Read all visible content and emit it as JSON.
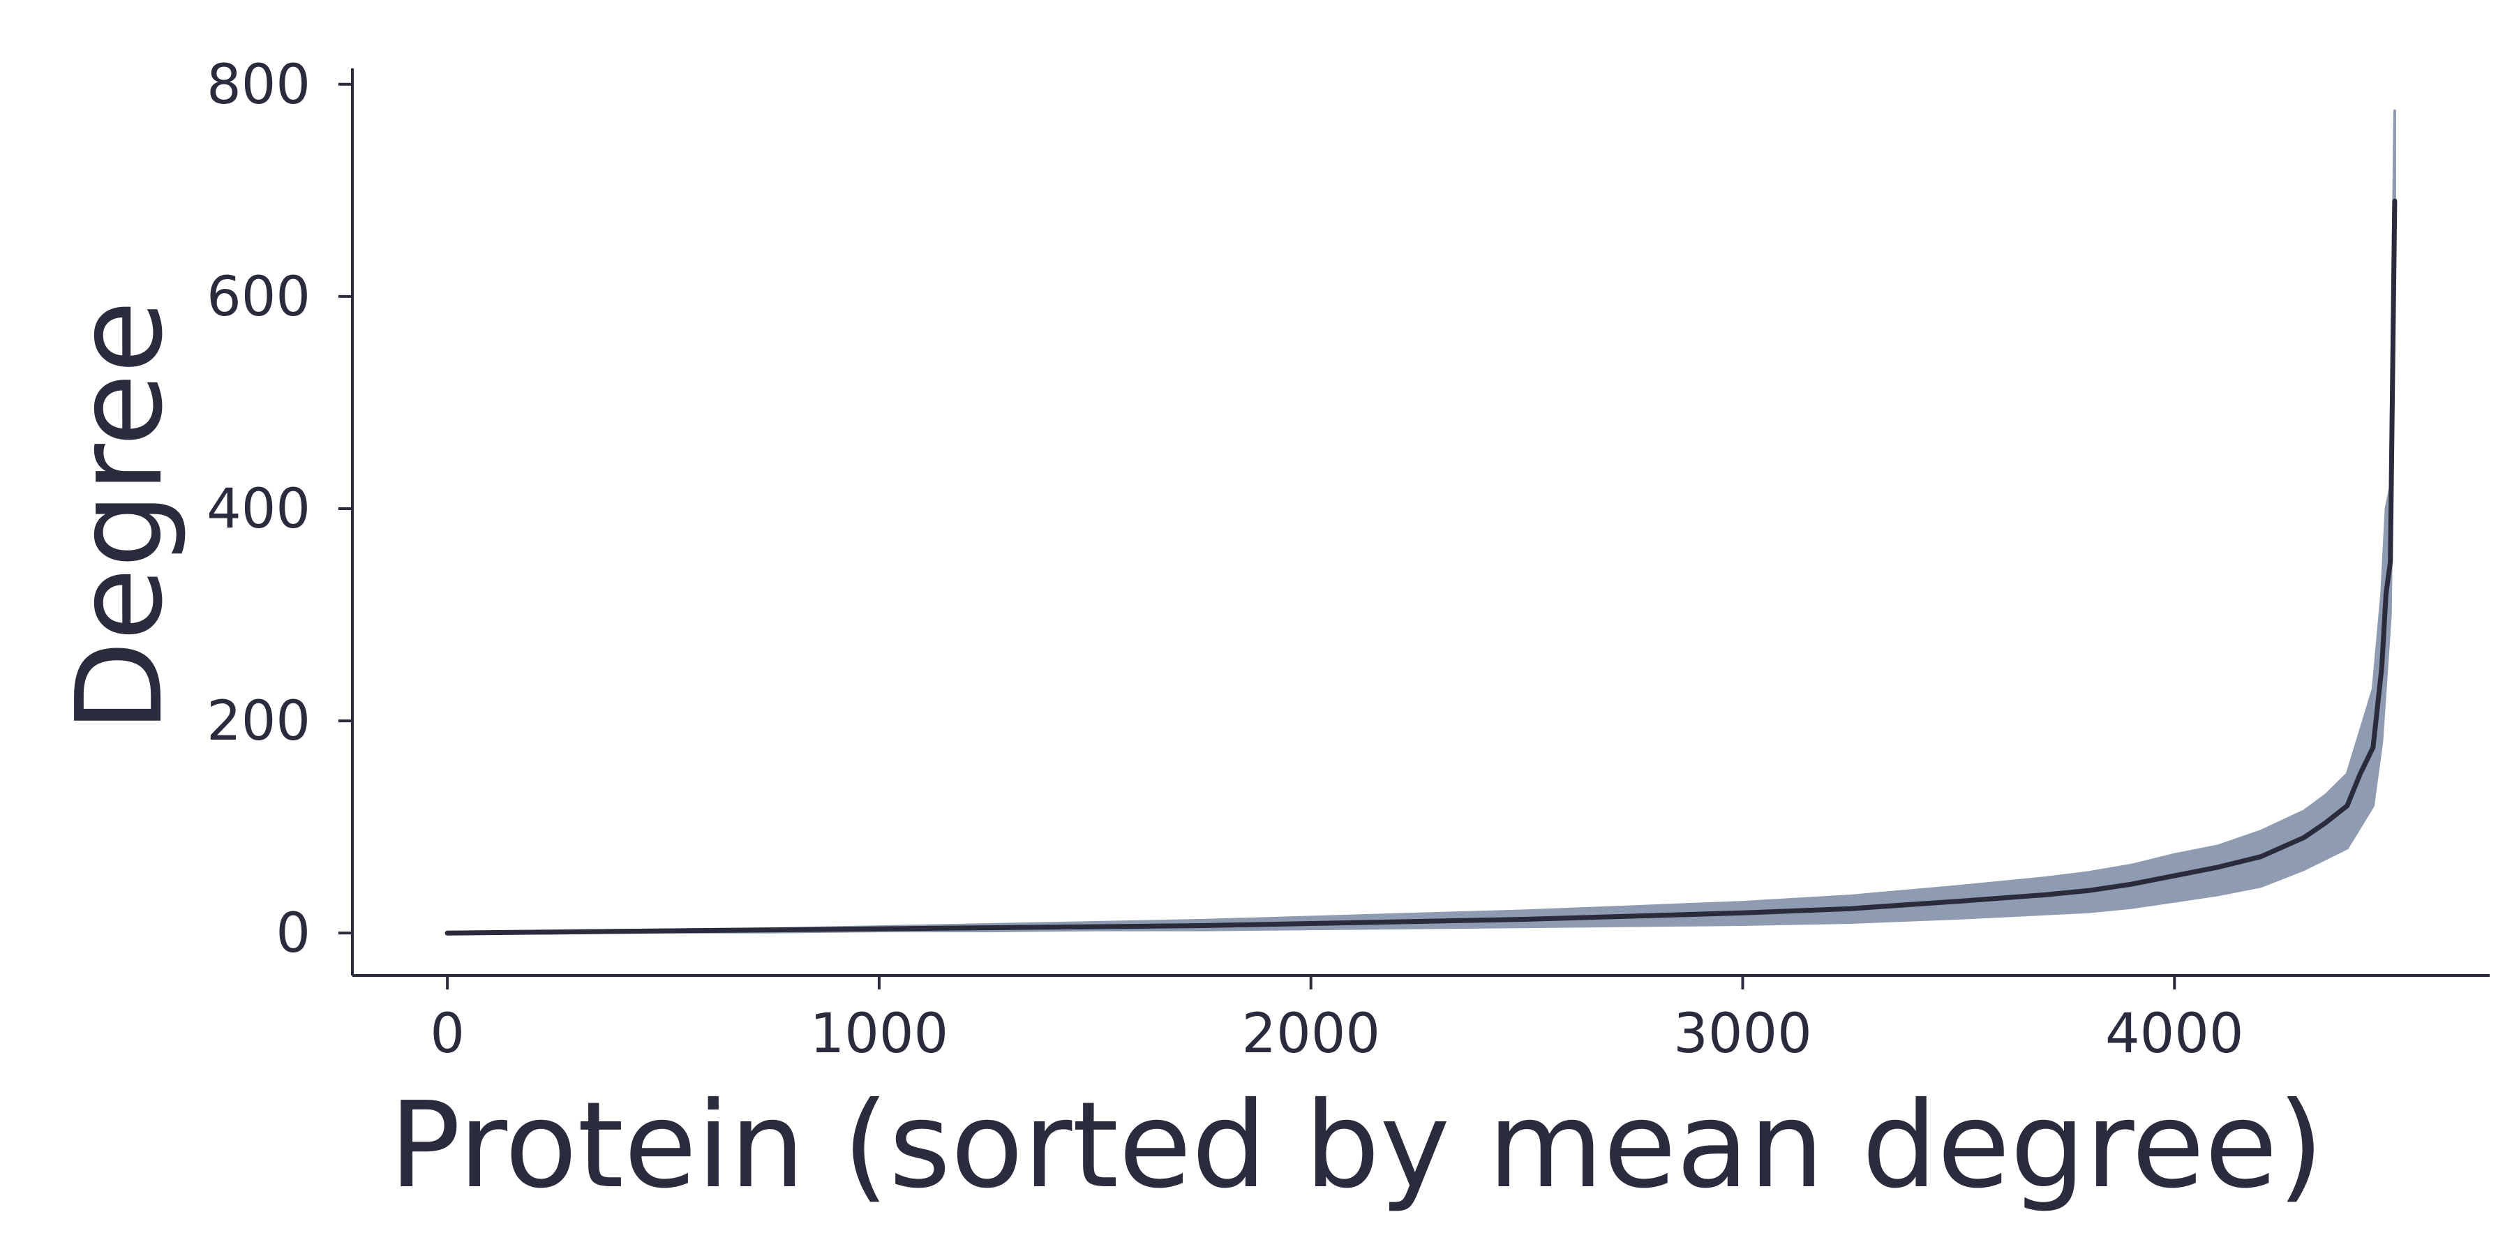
{
  "chart_data": {
    "type": "line",
    "title": "",
    "xlabel": "Protein (sorted by mean degree)",
    "ylabel": "Degree",
    "xlim": [
      -220,
      4730
    ],
    "ylim": [
      -40,
      815
    ],
    "xticks": [
      0,
      1000,
      2000,
      3000,
      4000
    ],
    "yticks": [
      0,
      200,
      400,
      600,
      800
    ],
    "grid": false,
    "legend": "none",
    "colors": {
      "mean_line": "#2a2b3d",
      "band_fill": "#8e9bb0",
      "axis": "#2a2b3d"
    },
    "series": [
      {
        "x": [
          0,
          250,
          500,
          750,
          1000,
          1250,
          1500,
          1750,
          2000,
          2250,
          2500,
          2750,
          3000,
          3250,
          3500,
          3700,
          3800,
          3900,
          4000,
          4100,
          4200,
          4300,
          4350,
          4400,
          4430,
          4460,
          4480,
          4490,
          4500,
          4505,
          4510
        ],
        "values": [
          0,
          1,
          2,
          3,
          4,
          5,
          6,
          7,
          9,
          11,
          13,
          16,
          19,
          23,
          30,
          36,
          40,
          46,
          54,
          62,
          72,
          90,
          104,
          120,
          150,
          175,
          250,
          320,
          350,
          520,
          690
        ]
      },
      {
        "x": [
          0,
          250,
          500,
          750,
          1000,
          1250,
          1500,
          1750,
          2000,
          2250,
          2500,
          2750,
          3000,
          3250,
          3500,
          3700,
          3800,
          3900,
          4000,
          4100,
          4200,
          4300,
          4350,
          4400,
          4430,
          4460,
          4480,
          4490,
          4500,
          4505,
          4510
        ],
        "lower": [
          0,
          0,
          1,
          1,
          2,
          2,
          3,
          3,
          4,
          5,
          6,
          7,
          8,
          10,
          14,
          18,
          20,
          24,
          30,
          36,
          44,
          60,
          70,
          80,
          100,
          120,
          180,
          240,
          300,
          450,
          690
        ],
        "upper": [
          1,
          2,
          3,
          4,
          6,
          8,
          10,
          12,
          15,
          18,
          21,
          25,
          29,
          35,
          44,
          52,
          57,
          64,
          74,
          82,
          96,
          115,
          130,
          150,
          190,
          230,
          320,
          400,
          420,
          600,
          775
        ]
      }
    ]
  }
}
